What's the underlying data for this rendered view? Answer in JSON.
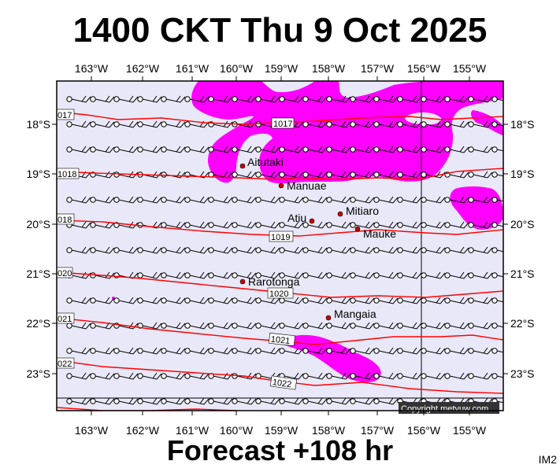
{
  "title": "1400 CKT Thu 9 Oct 2025",
  "footer": "Forecast +108 hr",
  "image_id": "IM2",
  "copyright": "Copyright metvuw.com",
  "colors": {
    "ocean": "#e8e8f8",
    "rain": "#ff00ff",
    "isobar": "#ff0000",
    "island": "#cc0000",
    "meridian": "#000000"
  },
  "map": {
    "lon_labels": [
      "163°W",
      "162°W",
      "161°W",
      "160°W",
      "159°W",
      "158°W",
      "157°W",
      "156°W",
      "155°W"
    ],
    "lat_labels": [
      "18°S",
      "19°S",
      "20°S",
      "21°S",
      "22°S",
      "23°S"
    ],
    "islands": [
      {
        "name": "Aitutaki",
        "lon": -159.78,
        "lat": -18.86
      },
      {
        "name": "Manuae",
        "lon": -158.96,
        "lat": -19.27
      },
      {
        "name": "Atiu",
        "lon": -158.12,
        "lat": -20.0
      },
      {
        "name": "Mitiaro",
        "lon": -157.7,
        "lat": -19.87
      },
      {
        "name": "Mauke",
        "lon": -157.34,
        "lat": -20.15
      },
      {
        "name": "Rarotonga",
        "lon": -159.78,
        "lat": -21.23
      },
      {
        "name": "Mangaia",
        "lon": -157.92,
        "lat": -21.93
      }
    ],
    "isobars": [
      {
        "hpa": "1017",
        "label": "017"
      },
      {
        "hpa": "1017",
        "label": "1017"
      },
      {
        "hpa": "1018",
        "label": "1018"
      },
      {
        "hpa": "1018",
        "label": "018"
      },
      {
        "hpa": "1019",
        "label": "1019"
      },
      {
        "hpa": "1020",
        "label": "020"
      },
      {
        "hpa": "1020",
        "label": "1020"
      },
      {
        "hpa": "1021",
        "label": "021"
      },
      {
        "hpa": "1021",
        "label": "1021"
      },
      {
        "hpa": "1022",
        "label": "022"
      },
      {
        "hpa": "1022",
        "label": "1022"
      }
    ],
    "wind": {
      "direction": "easterly",
      "barbs": "10-15 kt"
    }
  }
}
